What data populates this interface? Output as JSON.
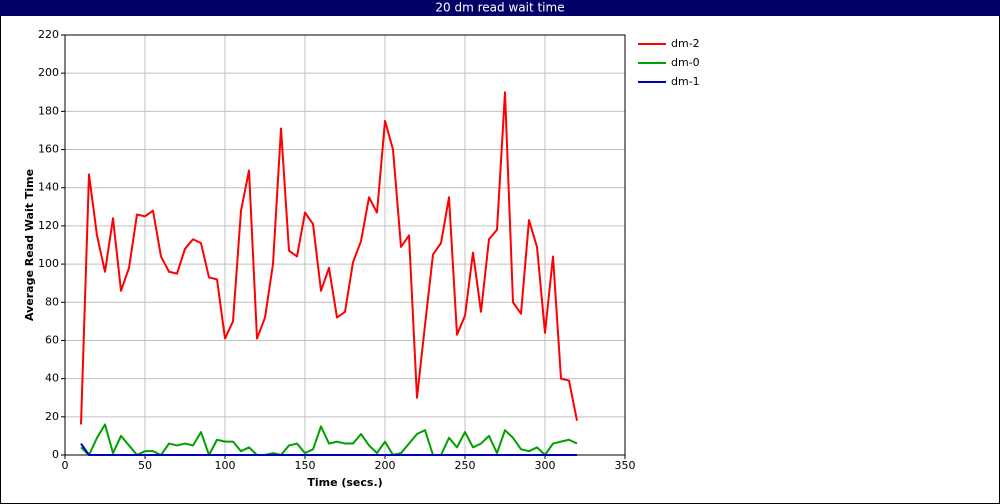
{
  "chart_data": {
    "type": "line",
    "title": "20 dm read wait time",
    "xlabel": "Time (secs.)",
    "ylabel": "Average Read Wait Time",
    "x": [
      10,
      15,
      20,
      25,
      30,
      35,
      40,
      45,
      50,
      55,
      60,
      65,
      70,
      75,
      80,
      85,
      90,
      95,
      100,
      105,
      110,
      115,
      120,
      125,
      130,
      135,
      140,
      145,
      150,
      155,
      160,
      165,
      170,
      175,
      180,
      185,
      190,
      195,
      200,
      205,
      210,
      215,
      220,
      225,
      230,
      235,
      240,
      245,
      250,
      255,
      260,
      265,
      270,
      275,
      280,
      285,
      290,
      295,
      300,
      305,
      310,
      315,
      320
    ],
    "series": [
      {
        "name": "dm-2",
        "color": "#ff0000",
        "values": [
          16,
          147,
          115,
          96,
          124,
          86,
          98,
          126,
          125,
          128,
          104,
          96,
          95,
          108,
          113,
          111,
          93,
          92,
          61,
          70,
          128,
          149,
          61,
          72,
          100,
          171,
          107,
          104,
          127,
          121,
          86,
          98,
          72,
          75,
          101,
          112,
          135,
          127,
          175,
          160,
          109,
          115,
          30,
          68,
          105,
          111,
          135,
          63,
          73,
          106,
          75,
          113,
          118,
          190,
          80,
          74,
          123,
          109,
          64,
          104,
          40,
          39,
          18
        ]
      },
      {
        "name": "dm-0",
        "color": "#00a000",
        "values": [
          4,
          0,
          9,
          16,
          1,
          10,
          5,
          0,
          2,
          2,
          0,
          6,
          5,
          6,
          5,
          12,
          0,
          8,
          7,
          7,
          2,
          4,
          0,
          0,
          1,
          0,
          5,
          6,
          1,
          3,
          15,
          6,
          7,
          6,
          6,
          11,
          5,
          1,
          7,
          0,
          1,
          6,
          11,
          13,
          0,
          0,
          9,
          4,
          12,
          4,
          6,
          10,
          1,
          13,
          9,
          3,
          2,
          4,
          0,
          6,
          7,
          8,
          6
        ]
      },
      {
        "name": "dm-1",
        "color": "#0000c0",
        "values": [
          6,
          0,
          0,
          0,
          0,
          0,
          0,
          0,
          0,
          0,
          0,
          0,
          0,
          0,
          0,
          0,
          0,
          0,
          0,
          0,
          0,
          0,
          0,
          0,
          0,
          0,
          0,
          0,
          0,
          0,
          0,
          0,
          0,
          0,
          0,
          0,
          0,
          0,
          0,
          0,
          0,
          0,
          0,
          0,
          0,
          0,
          0,
          0,
          0,
          0,
          0,
          0,
          0,
          0,
          0,
          0,
          0,
          0,
          0,
          0,
          0,
          0,
          0
        ]
      }
    ],
    "xlim": [
      0,
      350
    ],
    "xticks": [
      0,
      50,
      100,
      150,
      200,
      250,
      300,
      350
    ],
    "ylim": [
      0,
      220
    ],
    "yticks": [
      0,
      20,
      40,
      60,
      80,
      100,
      120,
      140,
      160,
      180,
      200,
      220
    ],
    "grid": true,
    "legend": "right"
  }
}
